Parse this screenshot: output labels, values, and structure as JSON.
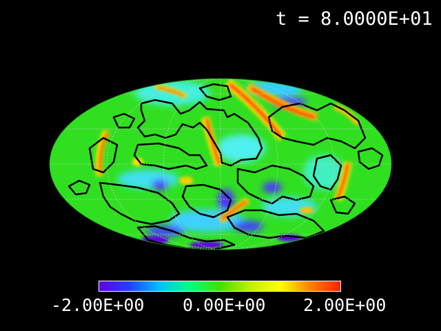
{
  "time_label": "t = 8.0000E+01",
  "colorbar": {
    "min_label": "-2.00E+00",
    "mid_label": "0.00E+00",
    "max_label": "2.00E+00",
    "colors": [
      "#6000e0",
      "#2040ff",
      "#00c0ff",
      "#00ff80",
      "#40e000",
      "#c0f000",
      "#ffff00",
      "#ff8000",
      "#ff2000"
    ]
  },
  "chart_data": {
    "type": "heatmap",
    "projection": "mollweide",
    "time": "8.0000E+01",
    "value_range": [
      -2.0,
      2.0
    ],
    "contour_level": 0.0,
    "graticule": true,
    "background_color": "#000000"
  }
}
